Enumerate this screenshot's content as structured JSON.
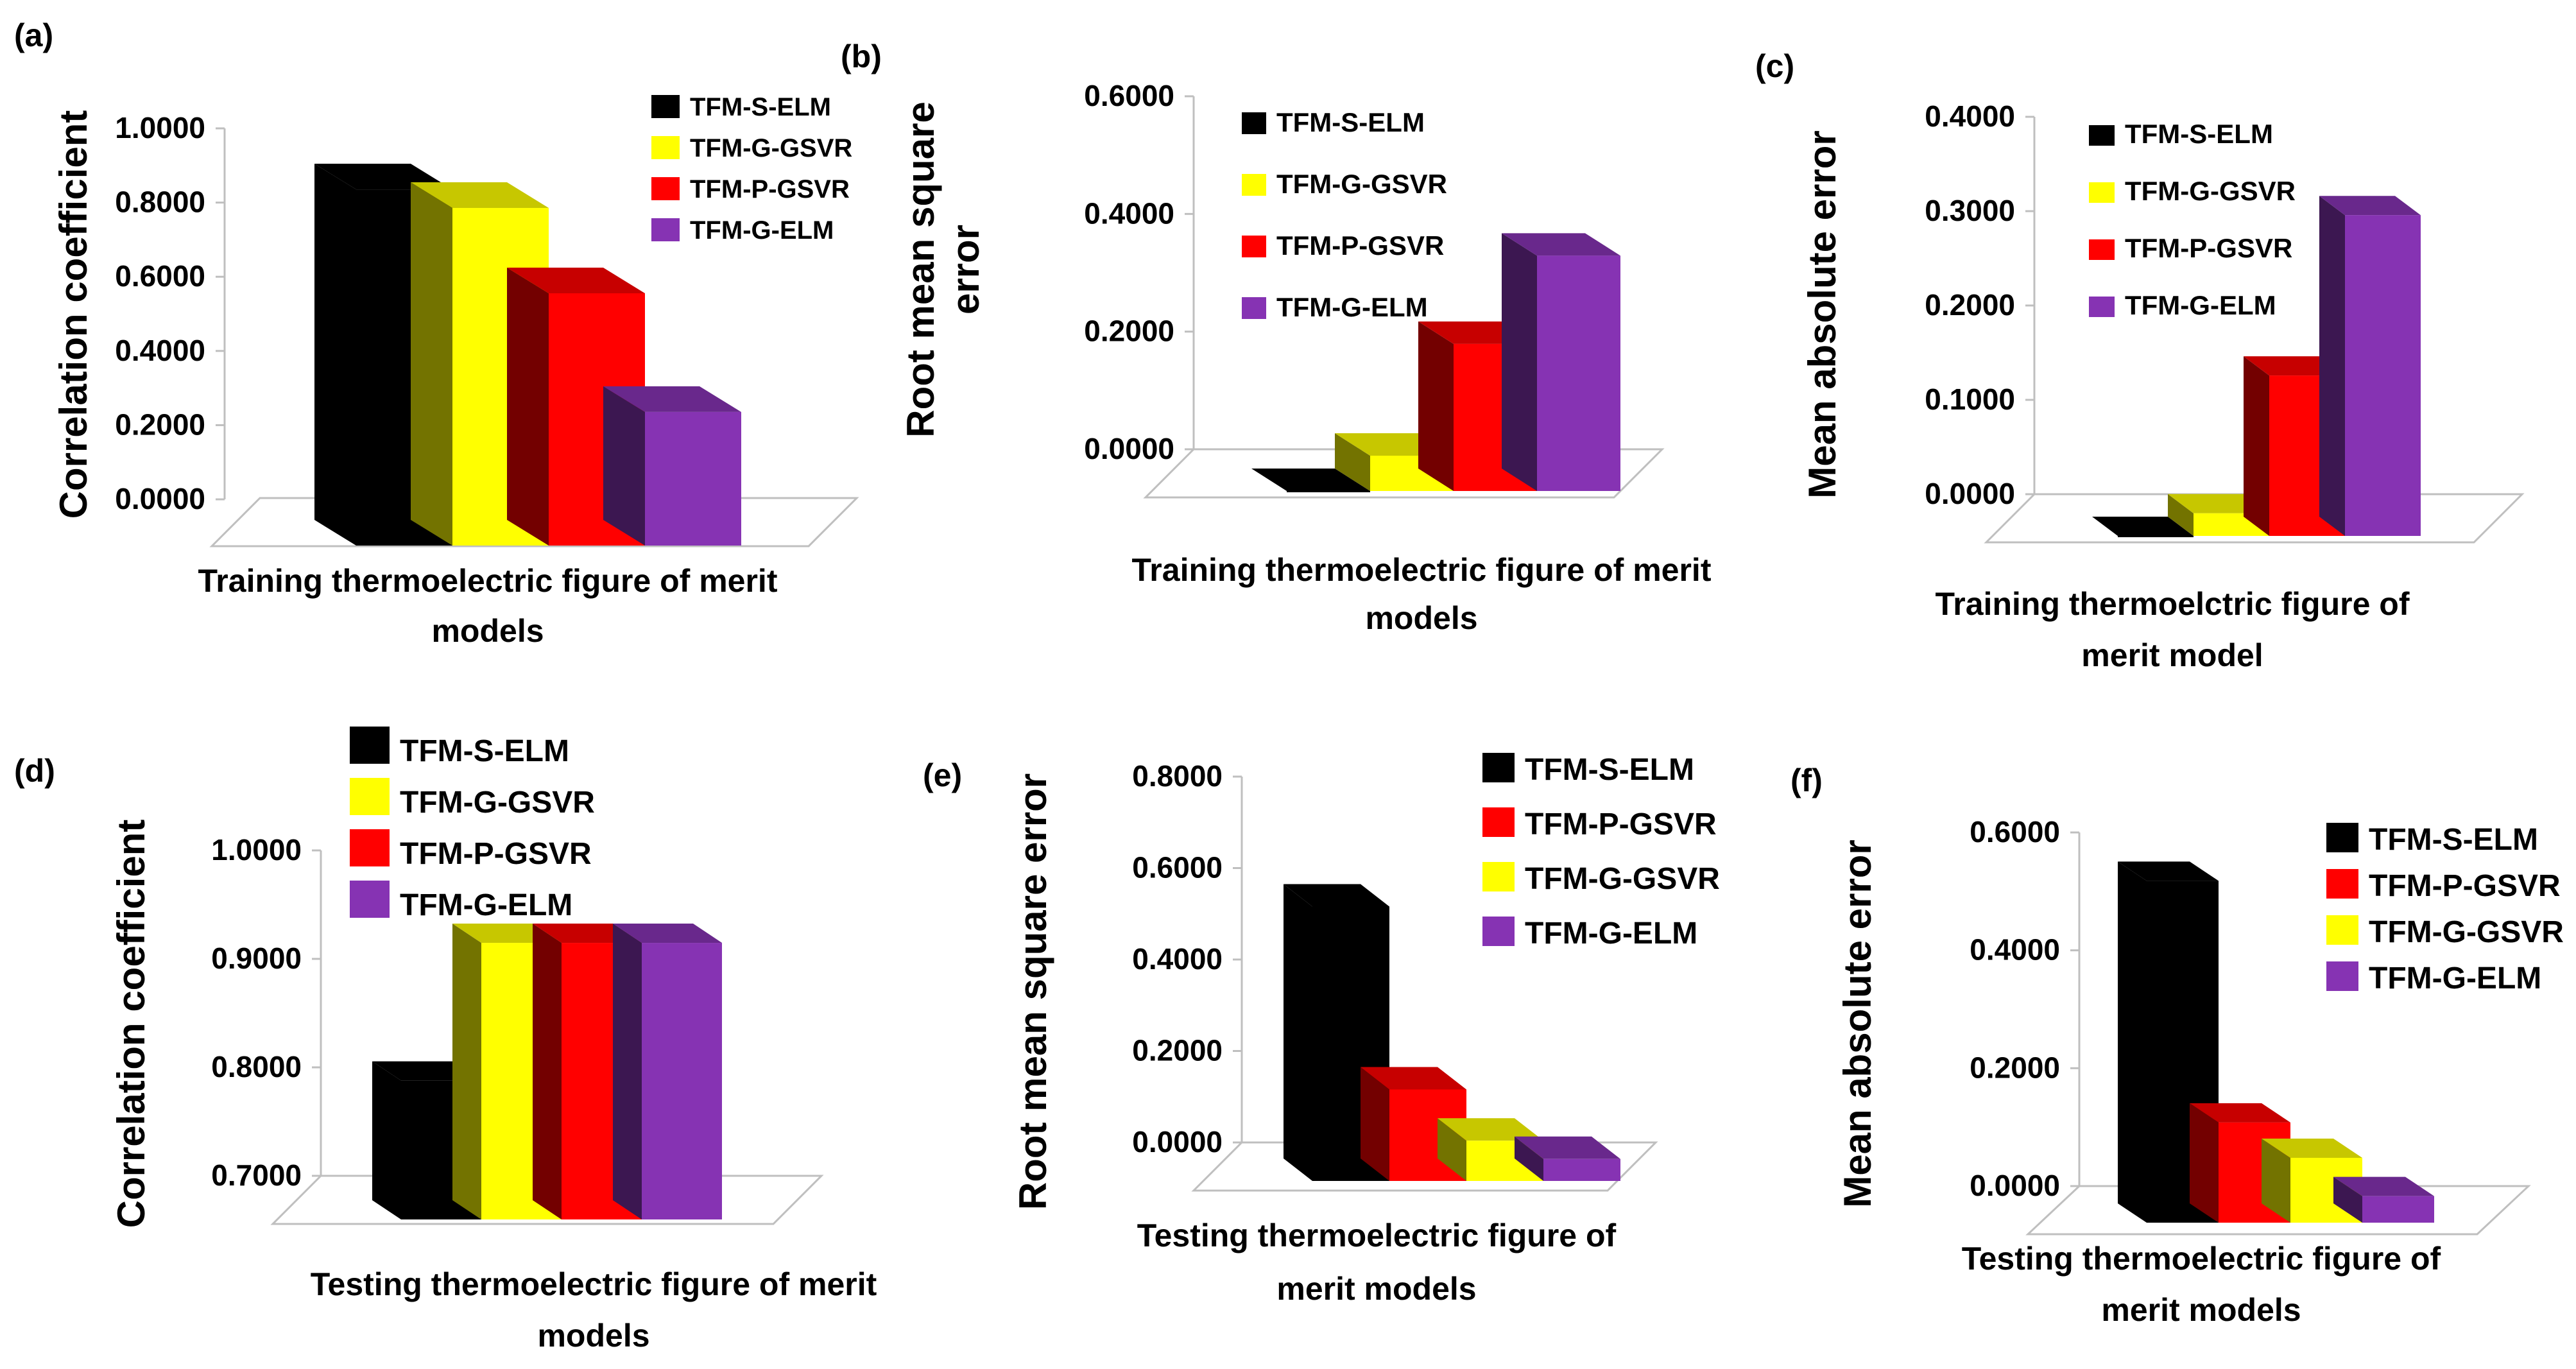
{
  "colors": {
    "TFM-S-ELM": "#000000",
    "TFM-G-GSVR": "#ffff00",
    "TFM-P-GSVR": "#ff0000",
    "TFM-G-ELM": "#8633b3"
  },
  "chart_data": [
    {
      "type": "bar",
      "panel": "(a)",
      "title": "",
      "ylabel": "Correlation coefficient",
      "xlabel": "Training thermoelectric figure of merit models",
      "ylim": [
        0,
        1.0
      ],
      "yticks": [
        "1.0000",
        "0.8000",
        "0.6000",
        "0.4000",
        "0.2000",
        "0.0000"
      ],
      "legend": [
        "TFM-S-ELM",
        "TFM-G-GSVR",
        "TFM-P-GSVR",
        "TFM-G-ELM"
      ],
      "series": [
        {
          "name": "TFM-S-ELM",
          "value": 0.96
        },
        {
          "name": "TFM-G-GSVR",
          "value": 0.91
        },
        {
          "name": "TFM-P-GSVR",
          "value": 0.68
        },
        {
          "name": "TFM-G-ELM",
          "value": 0.36
        }
      ]
    },
    {
      "type": "bar",
      "panel": "(b)",
      "title": "",
      "ylabel": "Root mean square error",
      "xlabel": "Training thermoelectric figure of merit models",
      "ylim": [
        0,
        0.6
      ],
      "yticks": [
        "0.6000",
        "0.4000",
        "0.2000",
        "0.0000"
      ],
      "legend": [
        "TFM-S-ELM",
        "TFM-G-GSVR",
        "TFM-P-GSVR",
        "TFM-G-ELM"
      ],
      "series": [
        {
          "name": "TFM-S-ELM",
          "value": 0.0
        },
        {
          "name": "TFM-G-GSVR",
          "value": 0.06
        },
        {
          "name": "TFM-P-GSVR",
          "value": 0.25
        },
        {
          "name": "TFM-G-ELM",
          "value": 0.4
        }
      ]
    },
    {
      "type": "bar",
      "panel": "(c)",
      "title": "",
      "ylabel": "Mean absolute error",
      "xlabel": "Training thermoelctric figure of merit model",
      "ylim": [
        0,
        0.4
      ],
      "yticks": [
        "0.4000",
        "0.3000",
        "0.2000",
        "0.1000",
        "0.0000"
      ],
      "legend": [
        "TFM-S-ELM",
        "TFM-G-GSVR",
        "TFM-P-GSVR",
        "TFM-G-ELM"
      ],
      "series": [
        {
          "name": "TFM-S-ELM",
          "value": 0.0
        },
        {
          "name": "TFM-G-GSVR",
          "value": 0.024
        },
        {
          "name": "TFM-P-GSVR",
          "value": 0.17
        },
        {
          "name": "TFM-G-ELM",
          "value": 0.34
        }
      ]
    },
    {
      "type": "bar",
      "panel": "(d)",
      "title": "",
      "ylabel": "Correlation coefficient",
      "xlabel": "Testing thermoelectric figure of merit models",
      "ylim": [
        0.7,
        1.0
      ],
      "yticks": [
        "1.0000",
        "0.9000",
        "0.8000",
        "0.7000"
      ],
      "legend": [
        "TFM-S-ELM",
        "TFM-G-GSVR",
        "TFM-P-GSVR",
        "TFM-G-ELM"
      ],
      "series": [
        {
          "name": "TFM-S-ELM",
          "value": 0.828
        },
        {
          "name": "TFM-G-GSVR",
          "value": 0.955
        },
        {
          "name": "TFM-P-GSVR",
          "value": 0.955
        },
        {
          "name": "TFM-G-ELM",
          "value": 0.955
        }
      ]
    },
    {
      "type": "bar",
      "panel": "(e)",
      "title": "",
      "ylabel": "Root mean square error",
      "xlabel": "Testing thermoelectric figure of merit models",
      "ylim": [
        0,
        0.8
      ],
      "yticks": [
        "0.8000",
        "0.6000",
        "0.4000",
        "0.2000",
        "0.0000"
      ],
      "legend": [
        "TFM-S-ELM",
        "TFM-P-GSVR",
        "TFM-G-GSVR",
        "TFM-G-ELM"
      ],
      "series": [
        {
          "name": "TFM-S-ELM",
          "value": 0.6
        },
        {
          "name": "TFM-P-GSVR",
          "value": 0.2
        },
        {
          "name": "TFM-G-GSVR",
          "value": 0.088
        },
        {
          "name": "TFM-G-ELM",
          "value": 0.048
        }
      ]
    },
    {
      "type": "bar",
      "panel": "(f)",
      "title": "",
      "ylabel": "Mean absolute error",
      "xlabel": "Testing thermoelectric figure of merit models",
      "ylim": [
        0,
        0.6
      ],
      "yticks": [
        "0.6000",
        "0.4000",
        "0.2000",
        "0.0000"
      ],
      "legend": [
        "TFM-S-ELM",
        "TFM-P-GSVR",
        "TFM-G-GSVR",
        "TFM-G-ELM"
      ],
      "series": [
        {
          "name": "TFM-S-ELM",
          "value": 0.58
        },
        {
          "name": "TFM-P-GSVR",
          "value": 0.17
        },
        {
          "name": "TFM-G-GSVR",
          "value": 0.11
        },
        {
          "name": "TFM-G-ELM",
          "value": 0.045
        }
      ]
    }
  ]
}
